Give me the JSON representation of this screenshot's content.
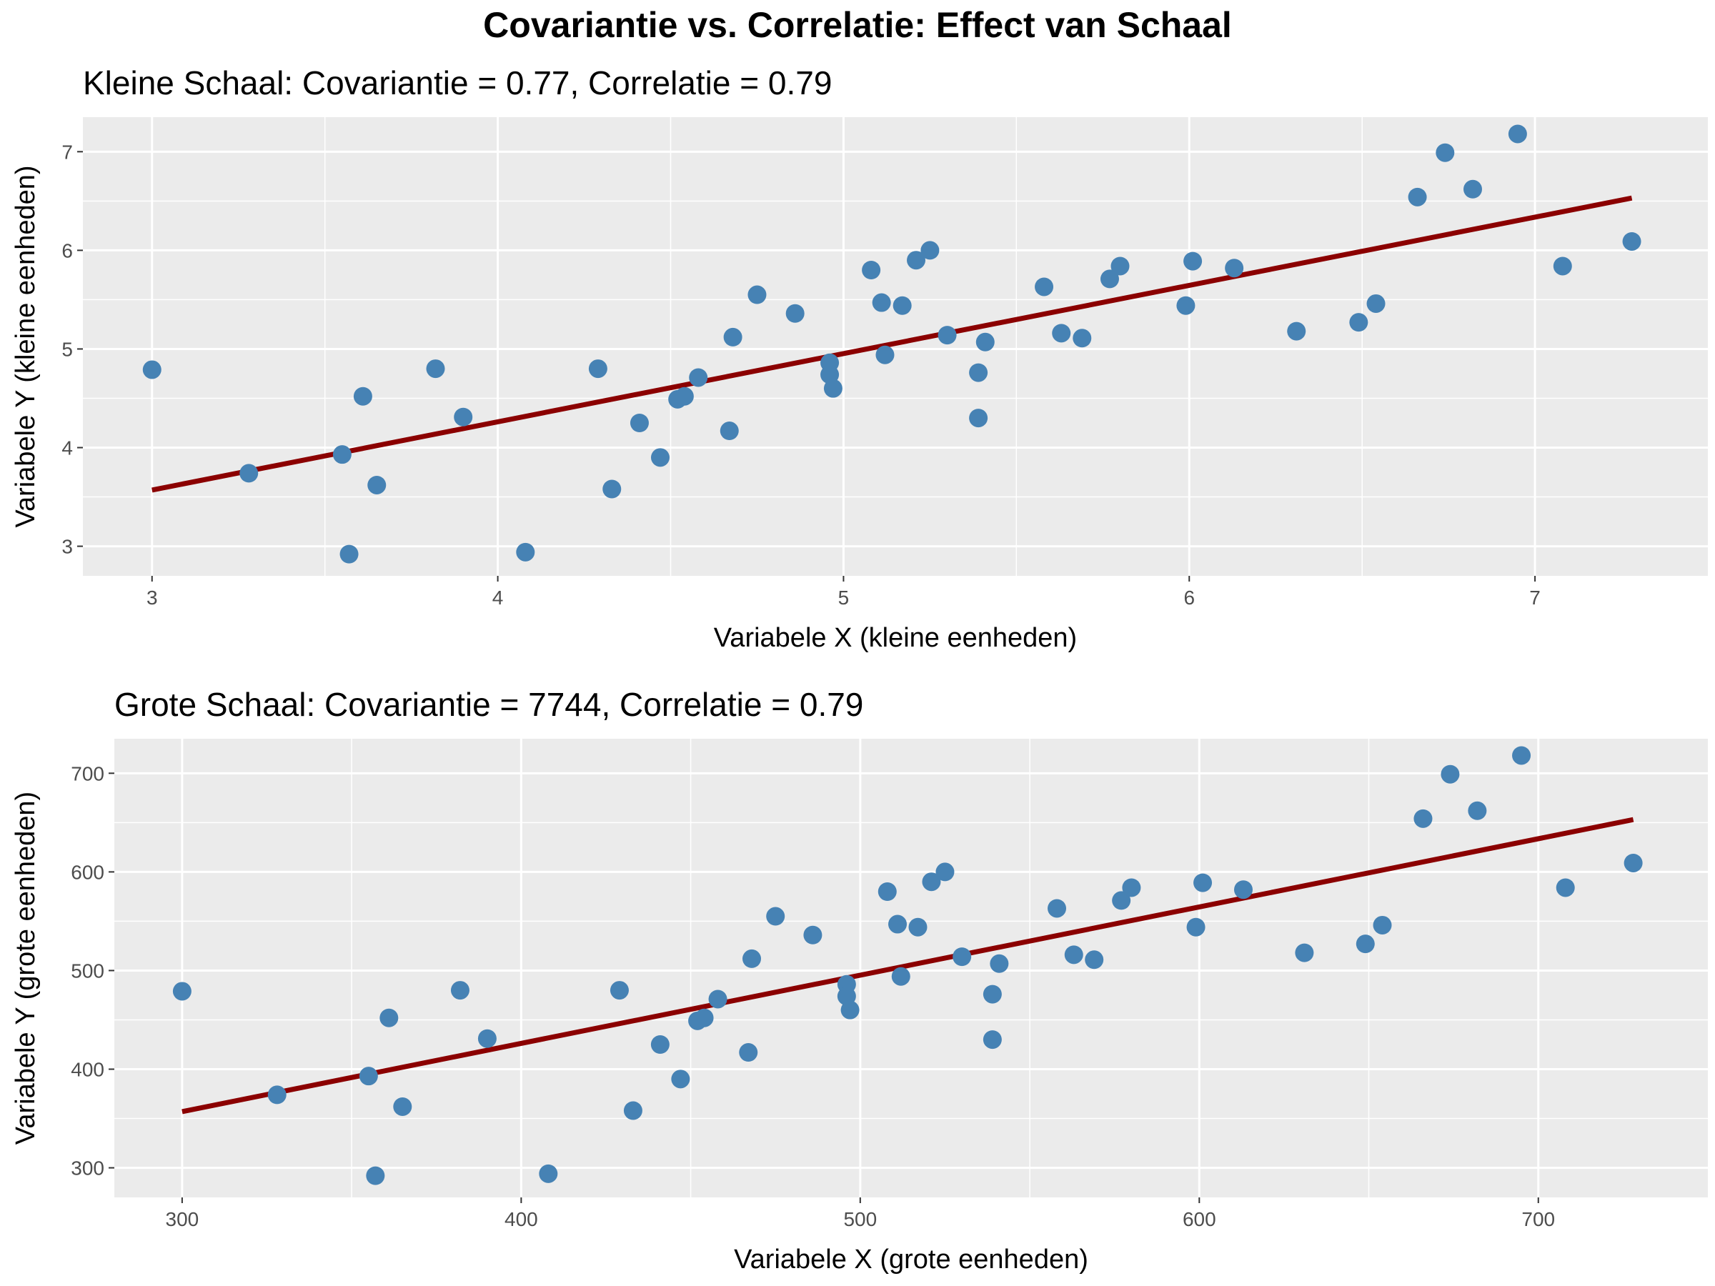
{
  "title": "Covariantie vs. Correlatie: Effect van Schaal",
  "colors": {
    "panel_bg": "#ebebeb",
    "grid": "#ffffff",
    "points": "#4682b4",
    "fit_line": "#8b0000",
    "tick_text": "#4d4d4d"
  },
  "chart_data": [
    {
      "type": "scatter",
      "title": "Kleine Schaal: Covariantie = 0.77, Correlatie = 0.79",
      "xlabel": "Variabele X (kleine eenheden)",
      "ylabel": "Variabele Y (kleine eenheden)",
      "xlim": [
        2.8,
        7.5
      ],
      "ylim": [
        2.7,
        7.35
      ],
      "x_ticks": [
        3,
        4,
        5,
        6,
        7
      ],
      "y_ticks": [
        3,
        4,
        5,
        6,
        7
      ],
      "grid": true,
      "fit_line": {
        "x": [
          3.0,
          7.28
        ],
        "y": [
          3.57,
          6.53
        ]
      },
      "points": [
        [
          3.0,
          4.79
        ],
        [
          3.28,
          3.74
        ],
        [
          3.55,
          3.93
        ],
        [
          3.57,
          2.92
        ],
        [
          3.61,
          4.52
        ],
        [
          3.65,
          3.62
        ],
        [
          3.82,
          4.8
        ],
        [
          3.9,
          4.31
        ],
        [
          4.08,
          2.94
        ],
        [
          4.29,
          4.8
        ],
        [
          4.33,
          3.58
        ],
        [
          4.41,
          4.25
        ],
        [
          4.47,
          3.9
        ],
        [
          4.52,
          4.49
        ],
        [
          4.54,
          4.52
        ],
        [
          4.58,
          4.71
        ],
        [
          4.67,
          4.17
        ],
        [
          4.68,
          5.12
        ],
        [
          4.75,
          5.55
        ],
        [
          4.86,
          5.36
        ],
        [
          4.96,
          4.86
        ],
        [
          4.96,
          4.74
        ],
        [
          4.97,
          4.6
        ],
        [
          5.08,
          5.8
        ],
        [
          5.11,
          5.47
        ],
        [
          5.12,
          4.94
        ],
        [
          5.17,
          5.44
        ],
        [
          5.21,
          5.9
        ],
        [
          5.25,
          6.0
        ],
        [
          5.3,
          5.14
        ],
        [
          5.39,
          4.3
        ],
        [
          5.39,
          4.76
        ],
        [
          5.41,
          5.07
        ],
        [
          5.58,
          5.63
        ],
        [
          5.63,
          5.16
        ],
        [
          5.69,
          5.11
        ],
        [
          5.77,
          5.71
        ],
        [
          5.8,
          5.84
        ],
        [
          5.99,
          5.44
        ],
        [
          6.01,
          5.89
        ],
        [
          6.13,
          5.82
        ],
        [
          6.31,
          5.18
        ],
        [
          6.49,
          5.27
        ],
        [
          6.54,
          5.46
        ],
        [
          6.66,
          6.54
        ],
        [
          6.74,
          6.99
        ],
        [
          6.82,
          6.62
        ],
        [
          6.95,
          7.18
        ],
        [
          7.08,
          5.84
        ],
        [
          7.28,
          6.09
        ]
      ]
    },
    {
      "type": "scatter",
      "title": "Grote Schaal: Covariantie = 7744, Correlatie = 0.79",
      "xlabel": "Variabele X (grote eenheden)",
      "ylabel": "Variabele Y (grote eenheden)",
      "xlim": [
        280,
        750
      ],
      "ylim": [
        270,
        735
      ],
      "x_ticks": [
        300,
        400,
        500,
        600,
        700
      ],
      "y_ticks": [
        300,
        400,
        500,
        600,
        700
      ],
      "grid": true,
      "fit_line": {
        "x": [
          300,
          728
        ],
        "y": [
          357,
          653
        ]
      },
      "points": [
        [
          300,
          479
        ],
        [
          328,
          374
        ],
        [
          355,
          393
        ],
        [
          357,
          292
        ],
        [
          361,
          452
        ],
        [
          365,
          362
        ],
        [
          382,
          480
        ],
        [
          390,
          431
        ],
        [
          408,
          294
        ],
        [
          429,
          480
        ],
        [
          433,
          358
        ],
        [
          441,
          425
        ],
        [
          447,
          390
        ],
        [
          452,
          449
        ],
        [
          454,
          452
        ],
        [
          458,
          471
        ],
        [
          467,
          417
        ],
        [
          468,
          512
        ],
        [
          475,
          555
        ],
        [
          486,
          536
        ],
        [
          496,
          486
        ],
        [
          496,
          474
        ],
        [
          497,
          460
        ],
        [
          508,
          580
        ],
        [
          511,
          547
        ],
        [
          512,
          494
        ],
        [
          517,
          544
        ],
        [
          521,
          590
        ],
        [
          525,
          600
        ],
        [
          530,
          514
        ],
        [
          539,
          430
        ],
        [
          539,
          476
        ],
        [
          541,
          507
        ],
        [
          558,
          563
        ],
        [
          563,
          516
        ],
        [
          569,
          511
        ],
        [
          577,
          571
        ],
        [
          580,
          584
        ],
        [
          599,
          544
        ],
        [
          601,
          589
        ],
        [
          613,
          582
        ],
        [
          631,
          518
        ],
        [
          649,
          527
        ],
        [
          654,
          546
        ],
        [
          666,
          654
        ],
        [
          674,
          699
        ],
        [
          682,
          662
        ],
        [
          695,
          718
        ],
        [
          708,
          584
        ],
        [
          728,
          609
        ]
      ]
    }
  ]
}
